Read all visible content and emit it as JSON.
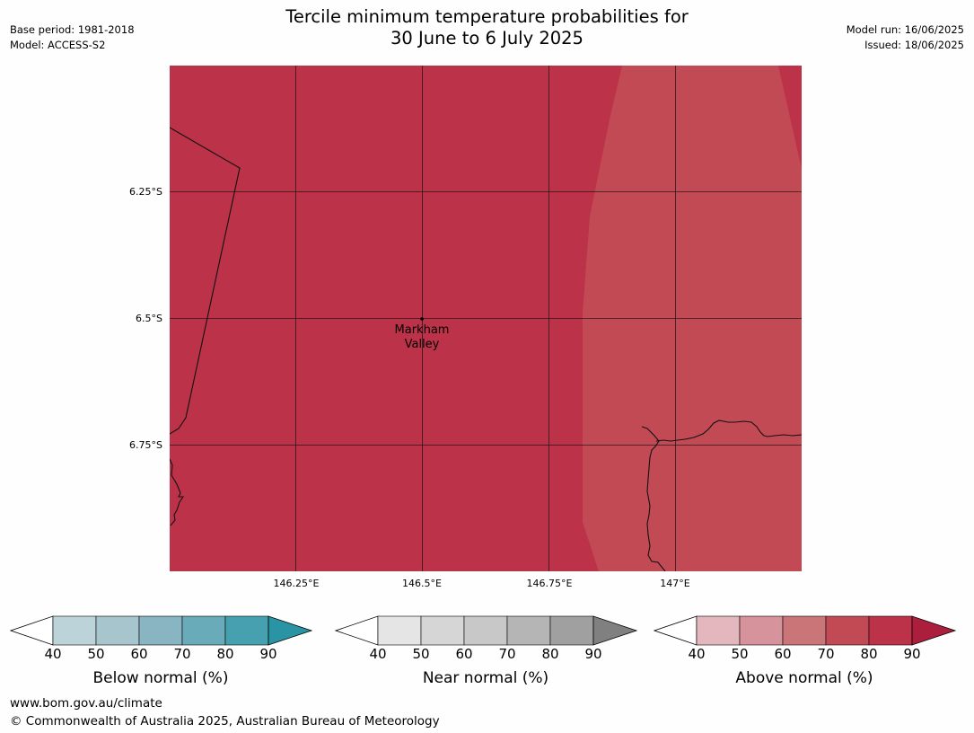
{
  "title_line1": "Tercile minimum temperature probabilities for",
  "title_line2": "30 June to 6 July 2025",
  "meta_left": {
    "base_period": "Base period: 1981-2018",
    "model": "Model: ACCESS-S2"
  },
  "meta_right": {
    "model_run": "Model run: 16/06/2025",
    "issued": "Issued: 18/06/2025"
  },
  "map": {
    "lat_ticks": [
      "6.25°S",
      "6.5°S",
      "6.75°S"
    ],
    "lon_ticks": [
      "146.25°E",
      "146.5°E",
      "146.75°E",
      "147°E"
    ],
    "place_name_line1": "Markham",
    "place_name_line2": "Valley",
    "fill_color_main": "#bb3249",
    "fill_color_east": "#c24a55"
  },
  "colorbars": [
    {
      "label": "Below normal (%)",
      "ticks": [
        "40",
        "50",
        "60",
        "70",
        "80",
        "90"
      ],
      "colors": [
        "#bdd3da",
        "#a7c5cc",
        "#89b4c1",
        "#6aabb9",
        "#47a0b0",
        "#2a93a4"
      ]
    },
    {
      "label": "Near normal (%)",
      "ticks": [
        "40",
        "50",
        "60",
        "70",
        "80",
        "90"
      ],
      "colors": [
        "#e5e5e5",
        "#d6d6d6",
        "#c8c8c8",
        "#b5b5b5",
        "#a0a0a0",
        "#808080"
      ]
    },
    {
      "label": "Above normal (%)",
      "ticks": [
        "40",
        "50",
        "60",
        "70",
        "80",
        "90"
      ],
      "colors": [
        "#e3b7bd",
        "#d7939b",
        "#ca7679",
        "#c24a55",
        "#bb3249",
        "#ac1f3c"
      ]
    }
  ],
  "footer": {
    "url": "www.bom.gov.au/climate",
    "copyright": "© Commonwealth of Australia 2025, Australian Bureau of Meteorology"
  }
}
